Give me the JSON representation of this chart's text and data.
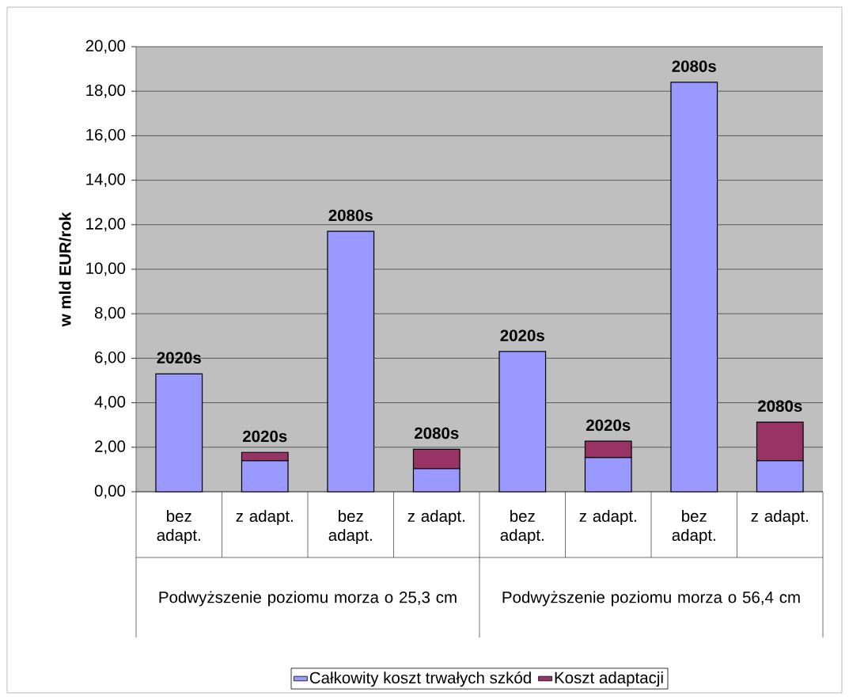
{
  "chart_data": {
    "type": "bar",
    "stacked": true,
    "ylabel": "w mld EUR/rok",
    "categories": [
      "bez adapt.",
      "z adapt.",
      "bez adapt.",
      "z adapt.",
      "bez adapt.",
      "z adapt.",
      "bez adapt.",
      "z adapt."
    ],
    "series": [
      {
        "name": "Całkowity koszt trwałych szkód",
        "color": "#9999ff",
        "values": [
          5.3,
          1.4,
          11.7,
          1.04,
          6.3,
          1.54,
          18.4,
          1.4
        ]
      },
      {
        "name": "Koszt adaptacji",
        "color": "#993366",
        "values": [
          null,
          0.37,
          null,
          0.87,
          null,
          0.73,
          null,
          1.73
        ]
      }
    ],
    "annotations": [
      "2020s",
      "2020s",
      "2080s",
      "2080s",
      "2020s",
      "2020s",
      "2080s",
      "2080s",
      "Podwyższenie poziomu morza o 25,3 cm",
      "Podwyższenie poziomu morza o 56,4 cm"
    ],
    "ylim": [
      0,
      20
    ],
    "yticks": [
      {
        "value": 0,
        "label": "0,00"
      },
      {
        "value": 2,
        "label": "2,00"
      },
      {
        "value": 4,
        "label": "4,00"
      },
      {
        "value": 6,
        "label": "6,00"
      },
      {
        "value": 8,
        "label": "8,00"
      },
      {
        "value": 10,
        "label": "10,00"
      },
      {
        "value": 12,
        "label": "12,00"
      },
      {
        "value": 14,
        "label": "14,00"
      },
      {
        "value": 16,
        "label": "16,00"
      },
      {
        "value": 18,
        "label": "18,00"
      },
      {
        "value": 20,
        "label": "20,00"
      }
    ],
    "grid": "y",
    "legend": "bottom"
  }
}
